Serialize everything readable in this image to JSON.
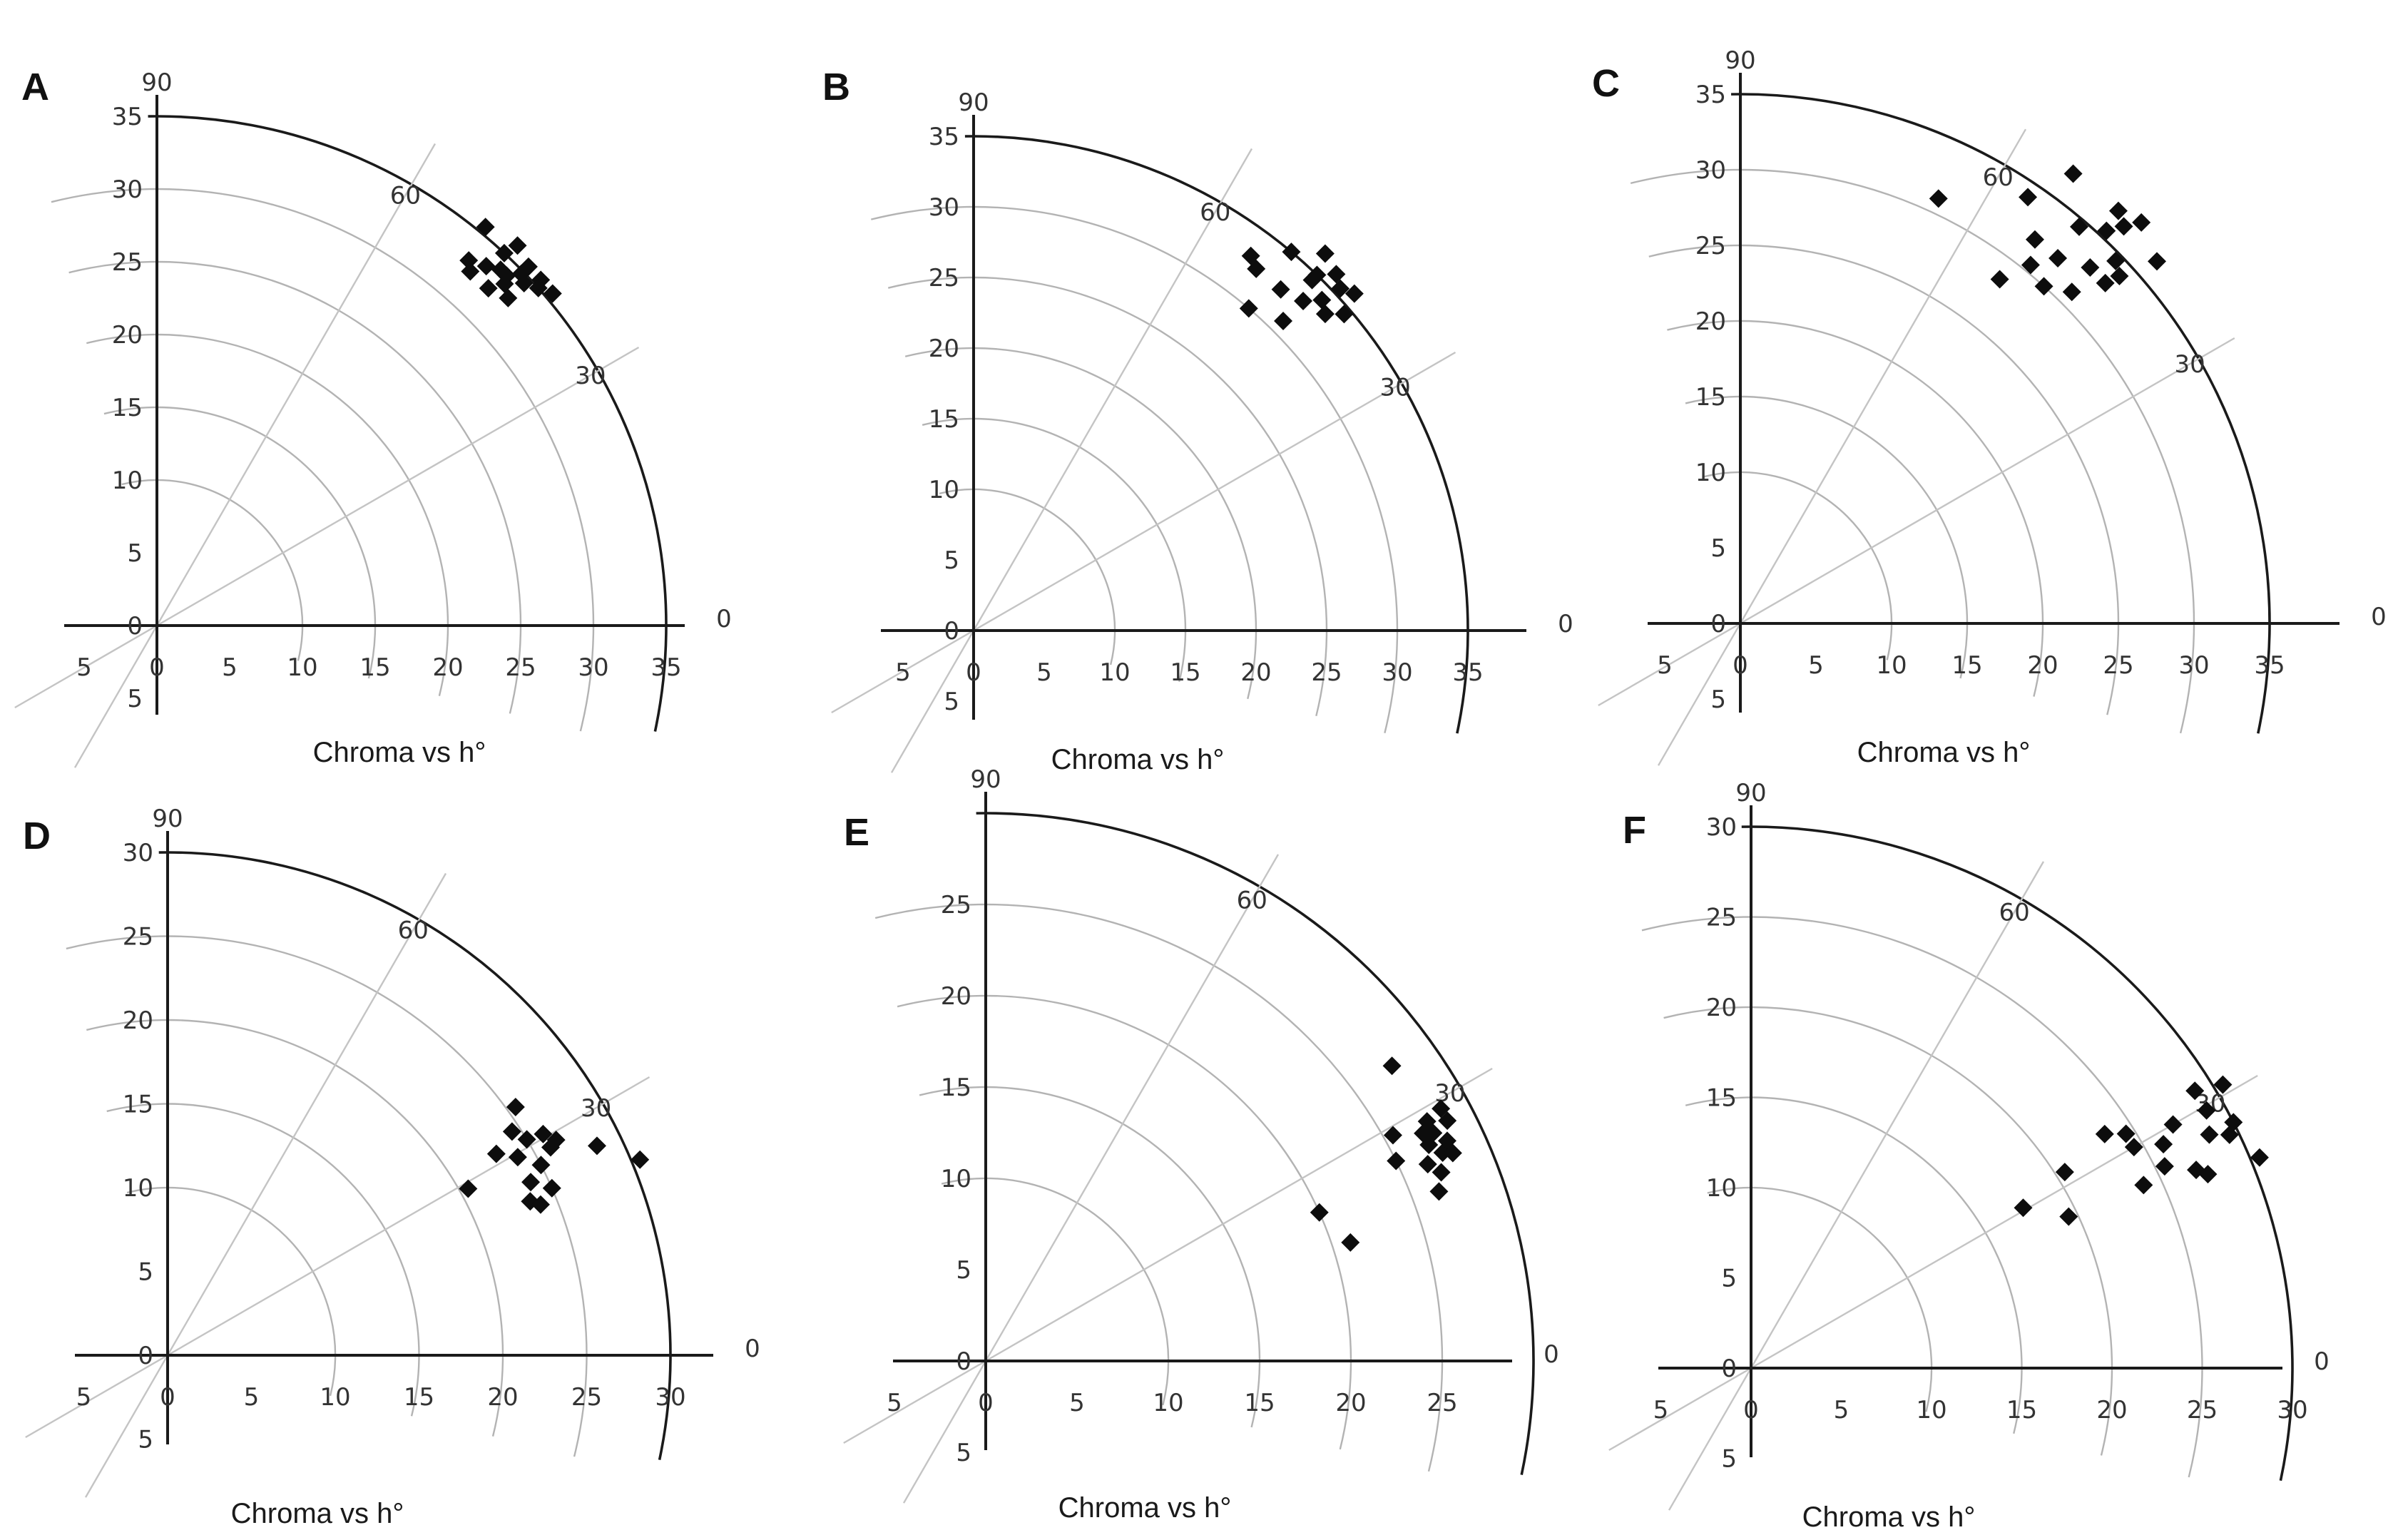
{
  "chart_data": [
    {
      "type": "scatter",
      "polar": true,
      "panel": "A",
      "title": "Chroma vs h°",
      "rmax": 35,
      "ring_ticks": [
        5,
        10,
        15,
        20,
        25,
        30,
        35
      ],
      "radial_tick_labels": [
        "35",
        "30",
        "25",
        "20",
        "15",
        "10",
        "5",
        "0"
      ],
      "x_tick_labels": [
        "5",
        "0",
        "5",
        "10",
        "15",
        "20",
        "25",
        "30",
        "35"
      ],
      "negative_tick_label": "5",
      "angle_labels": [
        "90",
        "60",
        "30",
        "0"
      ],
      "points": [
        {
          "h": 48.5,
          "c": 32.5
        },
        {
          "h": 45.0,
          "c": 34.0
        },
        {
          "h": 47.0,
          "c": 35.0
        },
        {
          "h": 43.0,
          "c": 34.5
        },
        {
          "h": 46.0,
          "c": 34.0
        },
        {
          "h": 44.0,
          "c": 35.5
        },
        {
          "h": 49.5,
          "c": 33.0
        },
        {
          "h": 44.5,
          "c": 33.5
        },
        {
          "h": 42.0,
          "c": 35.5
        },
        {
          "h": 47.5,
          "c": 33.5
        },
        {
          "h": 41.5,
          "c": 35.0
        },
        {
          "h": 45.5,
          "c": 32.5
        },
        {
          "h": 43.0,
          "c": 33.0
        },
        {
          "h": 50.5,
          "c": 35.5
        },
        {
          "h": 40.0,
          "c": 35.5
        },
        {
          "h": 44.0,
          "c": 34.8
        },
        {
          "h": 46.5,
          "c": 36.0
        }
      ]
    },
    {
      "type": "scatter",
      "polar": true,
      "panel": "B",
      "title": "Chroma vs h°",
      "rmax": 35,
      "ring_ticks": [
        5,
        10,
        15,
        20,
        25,
        30,
        35
      ],
      "radial_tick_labels": [
        "35",
        "30",
        "25",
        "20",
        "15",
        "10",
        "5",
        "0"
      ],
      "x_tick_labels": [
        "5",
        "0",
        "5",
        "10",
        "15",
        "20",
        "25",
        "30",
        "35"
      ],
      "negative_tick_label": "5",
      "angle_labels": [
        "90",
        "60",
        "30",
        "0"
      ],
      "points": [
        {
          "h": 53.5,
          "c": 33.0
        },
        {
          "h": 50.0,
          "c": 35.0
        },
        {
          "h": 49.5,
          "c": 30.0
        },
        {
          "h": 48.0,
          "c": 32.5
        },
        {
          "h": 45.0,
          "c": 33.0
        },
        {
          "h": 46.0,
          "c": 34.5
        },
        {
          "h": 42.0,
          "c": 33.5
        },
        {
          "h": 43.5,
          "c": 34.0
        },
        {
          "h": 41.5,
          "c": 36.0
        },
        {
          "h": 45.0,
          "c": 31.0
        },
        {
          "h": 43.0,
          "c": 35.5
        },
        {
          "h": 40.5,
          "c": 34.5
        },
        {
          "h": 44.5,
          "c": 36.0
        },
        {
          "h": 47.0,
          "c": 36.5
        },
        {
          "h": 52.0,
          "c": 32.5
        },
        {
          "h": 46.0,
          "c": 35.0
        }
      ]
    },
    {
      "type": "scatter",
      "polar": true,
      "panel": "C",
      "title": "Chroma vs h°",
      "rmax": 35,
      "ring_ticks": [
        5,
        10,
        15,
        20,
        25,
        30,
        35
      ],
      "radial_tick_labels": [
        "35",
        "30",
        "25",
        "20",
        "15",
        "10",
        "5",
        "0"
      ],
      "x_tick_labels": [
        "5",
        "0",
        "5",
        "10",
        "15",
        "20",
        "25",
        "30",
        "35"
      ],
      "negative_tick_label": "5",
      "angle_labels": [
        "90",
        "60",
        "30",
        "0"
      ],
      "points": [
        {
          "h": 65.0,
          "c": 31.0
        },
        {
          "h": 53.0,
          "c": 28.5
        },
        {
          "h": 56.0,
          "c": 34.0
        },
        {
          "h": 52.5,
          "c": 32.0
        },
        {
          "h": 49.5,
          "c": 34.5
        },
        {
          "h": 53.5,
          "c": 37.0
        },
        {
          "h": 47.0,
          "c": 35.5
        },
        {
          "h": 49.0,
          "c": 32.0
        },
        {
          "h": 45.5,
          "c": 33.0
        },
        {
          "h": 44.0,
          "c": 34.5
        },
        {
          "h": 47.5,
          "c": 37.0
        },
        {
          "h": 43.0,
          "c": 33.0
        },
        {
          "h": 46.0,
          "c": 36.5
        },
        {
          "h": 45.0,
          "c": 31.0
        },
        {
          "h": 42.5,
          "c": 34.0
        },
        {
          "h": 51.0,
          "c": 30.5
        },
        {
          "h": 45.0,
          "c": 37.5
        },
        {
          "h": 41.0,
          "c": 36.5
        },
        {
          "h": 48.0,
          "c": 30.0
        }
      ]
    },
    {
      "type": "scatter",
      "polar": true,
      "panel": "D",
      "title": "Chroma vs h°",
      "rmax": 30,
      "ring_ticks": [
        5,
        10,
        15,
        20,
        25,
        30
      ],
      "radial_tick_labels": [
        "30",
        "25",
        "20",
        "15",
        "10",
        "5",
        "0"
      ],
      "x_tick_labels": [
        "5",
        "0",
        "5",
        "10",
        "15",
        "20",
        "25",
        "30"
      ],
      "negative_tick_label": "5",
      "angle_labels": [
        "90",
        "60",
        "30",
        "0"
      ],
      "points": [
        {
          "h": 35.5,
          "c": 25.5
        },
        {
          "h": 29.5,
          "c": 24.0
        },
        {
          "h": 30.5,
          "c": 26.0
        },
        {
          "h": 33.0,
          "c": 24.5
        },
        {
          "h": 31.0,
          "c": 25.0
        },
        {
          "h": 29.0,
          "c": 26.5
        },
        {
          "h": 27.0,
          "c": 25.0
        },
        {
          "h": 25.5,
          "c": 24.0
        },
        {
          "h": 23.5,
          "c": 25.0
        },
        {
          "h": 23.0,
          "c": 23.5
        },
        {
          "h": 22.0,
          "c": 24.0
        },
        {
          "h": 26.0,
          "c": 28.5
        },
        {
          "h": 22.5,
          "c": 30.5
        },
        {
          "h": 29.0,
          "c": 20.5
        },
        {
          "h": 28.5,
          "c": 26.0
        },
        {
          "h": 31.5,
          "c": 23.0
        }
      ]
    },
    {
      "type": "scatter",
      "polar": true,
      "panel": "E",
      "title": "Chroma vs h°",
      "rmax": 30,
      "ring_ticks": [
        5,
        10,
        15,
        20,
        25,
        30
      ],
      "radial_tick_labels": [
        "25",
        "20",
        "15",
        "10",
        "5",
        "0"
      ],
      "x_tick_labels": [
        "5",
        "0",
        "5",
        "10",
        "15",
        "20",
        "25"
      ],
      "negative_tick_label": "5",
      "angle_labels": [
        "90",
        "60",
        "30",
        "0"
      ],
      "points": [
        {
          "h": 36.0,
          "c": 27.5
        },
        {
          "h": 24.0,
          "c": 20.0
        },
        {
          "h": 18.0,
          "c": 21.0
        },
        {
          "h": 26.0,
          "c": 25.0
        },
        {
          "h": 29.0,
          "c": 25.5
        },
        {
          "h": 27.5,
          "c": 27.0
        },
        {
          "h": 26.0,
          "c": 27.0
        },
        {
          "h": 24.0,
          "c": 26.5
        },
        {
          "h": 24.5,
          "c": 27.5
        },
        {
          "h": 22.5,
          "c": 27.0
        },
        {
          "h": 28.5,
          "c": 27.5
        },
        {
          "h": 27.0,
          "c": 27.5
        },
        {
          "h": 25.5,
          "c": 28.0
        },
        {
          "h": 20.5,
          "c": 26.5
        },
        {
          "h": 27.5,
          "c": 28.5
        },
        {
          "h": 24.0,
          "c": 28.0
        },
        {
          "h": 29.0,
          "c": 28.5
        }
      ]
    },
    {
      "type": "scatter",
      "polar": true,
      "panel": "F",
      "title": "Chroma vs h°",
      "rmax": 30,
      "ring_ticks": [
        5,
        10,
        15,
        20,
        25,
        30
      ],
      "radial_tick_labels": [
        "30",
        "25",
        "20",
        "15",
        "10",
        "5",
        "0"
      ],
      "x_tick_labels": [
        "5",
        "0",
        "5",
        "10",
        "15",
        "20",
        "25",
        "30"
      ],
      "negative_tick_label": "5",
      "angle_labels": [
        "90",
        "60",
        "30",
        "0"
      ],
      "points": [
        {
          "h": 30.5,
          "c": 17.5
        },
        {
          "h": 25.5,
          "c": 19.5
        },
        {
          "h": 32.0,
          "c": 20.5
        },
        {
          "h": 33.5,
          "c": 23.5
        },
        {
          "h": 32.0,
          "c": 24.5
        },
        {
          "h": 30.0,
          "c": 24.5
        },
        {
          "h": 25.0,
          "c": 24.0
        },
        {
          "h": 26.0,
          "c": 25.5
        },
        {
          "h": 28.5,
          "c": 26.0
        },
        {
          "h": 30.0,
          "c": 27.0
        },
        {
          "h": 24.0,
          "c": 27.0
        },
        {
          "h": 23.0,
          "c": 27.5
        },
        {
          "h": 32.0,
          "c": 29.0
        },
        {
          "h": 27.0,
          "c": 28.5
        },
        {
          "h": 27.0,
          "c": 30.0
        },
        {
          "h": 26.0,
          "c": 29.5
        },
        {
          "h": 22.5,
          "c": 30.5
        },
        {
          "h": 29.5,
          "c": 29.0
        },
        {
          "h": 31.0,
          "c": 30.5
        }
      ]
    }
  ]
}
